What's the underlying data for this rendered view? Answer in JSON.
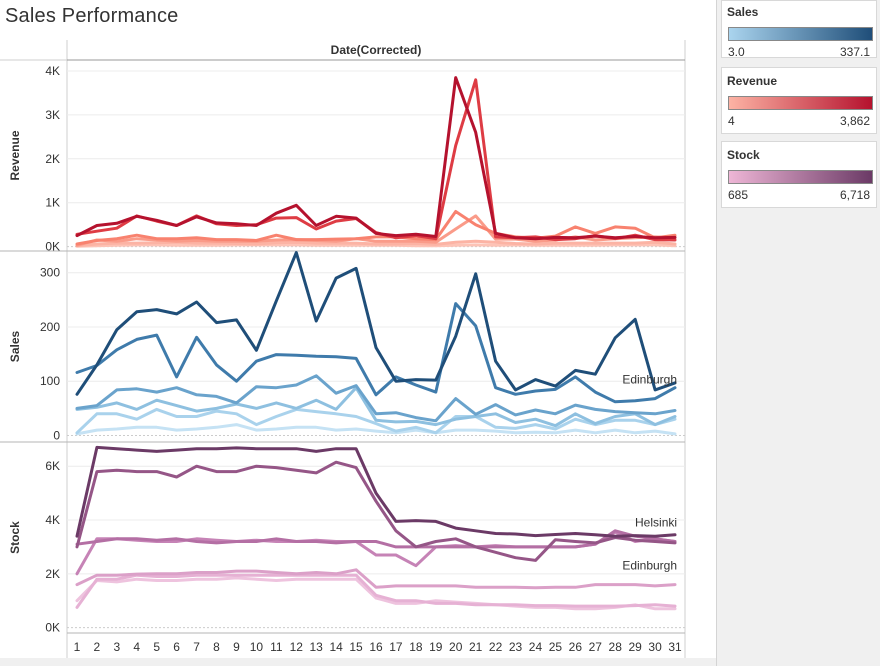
{
  "title": "Sales Performance",
  "legends": [
    {
      "key": "sales",
      "title": "Sales",
      "min": "3.0",
      "max": "337.1",
      "color_start": "#aad4ee",
      "color_end": "#1f4e79"
    },
    {
      "key": "revenue",
      "title": "Revenue",
      "min": "4",
      "max": "3,862",
      "color_start": "#fcb3a4",
      "color_end": "#b5122e"
    },
    {
      "key": "stock",
      "title": "Stock",
      "min": "685",
      "max": "6,718",
      "color_start": "#eeb6d6",
      "color_end": "#6b3a66"
    }
  ],
  "chart_data": {
    "type": "line",
    "column_header": "Date(Corrected)",
    "x": [
      1,
      2,
      3,
      4,
      5,
      6,
      7,
      8,
      9,
      10,
      11,
      12,
      13,
      14,
      15,
      16,
      17,
      18,
      19,
      20,
      21,
      22,
      23,
      24,
      25,
      26,
      27,
      28,
      29,
      30,
      31
    ],
    "panels": [
      {
        "measure": "Revenue",
        "ylabel": "Revenue",
        "ylim": [
          -100,
          4250
        ],
        "ticks": [
          {
            "v": 0,
            "label": "0K"
          },
          {
            "v": 1000,
            "label": "1K"
          },
          {
            "v": 2000,
            "label": "2K"
          },
          {
            "v": 3000,
            "label": "3K"
          },
          {
            "v": 4000,
            "label": "4K"
          }
        ],
        "series": [
          {
            "values": [
              250,
              480,
              530,
              690,
              600,
              480,
              680,
              540,
              520,
              480,
              760,
              940,
              480,
              690,
              650,
              300,
              250,
              280,
              230,
              3850,
              2600,
              300,
              200,
              180,
              210,
              200,
              240,
              200,
              230,
              200,
              210
            ],
            "color": "#b5122e"
          },
          {
            "values": [
              280,
              350,
              420,
              700,
              580,
              480,
              700,
              520,
              480,
              500,
              650,
              660,
              400,
              580,
              640,
              320,
              200,
              250,
              180,
              2300,
              3800,
              220,
              200,
              220,
              160,
              180,
              250,
              180,
              260,
              160,
              150
            ],
            "color": "#de3c44"
          },
          {
            "values": [
              60,
              140,
              180,
              260,
              180,
              180,
              200,
              160,
              160,
              140,
              260,
              160,
              160,
              170,
              180,
              220,
              220,
              180,
              160,
              800,
              500,
              300,
              220,
              190,
              240,
              450,
              300,
              450,
              420,
              200,
              260
            ],
            "color": "#f8826f"
          },
          {
            "values": [
              30,
              150,
              120,
              180,
              150,
              120,
              140,
              120,
              120,
              120,
              150,
              160,
              140,
              120,
              180,
              120,
              120,
              120,
              100,
              400,
              700,
              170,
              170,
              120,
              150,
              220,
              150,
              180,
              200,
              220,
              200
            ],
            "color": "#fa9b89"
          },
          {
            "values": [
              20,
              60,
              80,
              80,
              90,
              100,
              80,
              80,
              70,
              60,
              90,
              100,
              80,
              80,
              80,
              60,
              60,
              70,
              50,
              100,
              120,
              100,
              70,
              60,
              80,
              80,
              80,
              80,
              80,
              100,
              60
            ],
            "color": "#fcb3a4"
          },
          {
            "values": [
              10,
              20,
              30,
              40,
              40,
              30,
              30,
              30,
              40,
              40,
              40,
              40,
              30,
              30,
              30,
              30,
              30,
              20,
              20,
              30,
              40,
              30,
              40,
              30,
              30,
              30,
              30,
              40,
              40,
              40,
              20
            ],
            "color": "#fdc3b6"
          }
        ]
      },
      {
        "measure": "Sales",
        "ylabel": "Sales",
        "ylim": [
          -12,
          340
        ],
        "ticks": [
          {
            "v": 0,
            "label": "0"
          },
          {
            "v": 100,
            "label": "100"
          },
          {
            "v": 200,
            "label": "200"
          },
          {
            "v": 300,
            "label": "300"
          }
        ],
        "series": [
          {
            "values": [
              76,
              130,
              195,
              228,
              232,
              224,
              246,
              208,
              213,
              157,
              248,
              337,
              211,
              290,
              308,
              162,
              100,
              103,
              102,
              183,
              298,
              137,
              84,
              103,
              91,
              120,
              113,
              180,
              214,
              84,
              97
            ],
            "color": "#1f4e79"
          },
          {
            "values": [
              116,
              129,
              158,
              177,
              185,
              108,
              181,
              130,
              100,
              137,
              149,
              148,
              146,
              145,
              142,
              75,
              108,
              93,
              80,
              243,
              202,
              88,
              76,
              82,
              85,
              108,
              80,
              62,
              64,
              68,
              88
            ],
            "color": "#3f7bab"
          },
          {
            "values": [
              50,
              55,
              84,
              86,
              80,
              88,
              75,
              72,
              60,
              90,
              88,
              93,
              110,
              78,
              92,
              40,
              42,
              33,
              27,
              68,
              39,
              57,
              38,
              47,
              40,
              56,
              48,
              44,
              42,
              40,
              46
            ],
            "color": "#6aa3cc"
          },
          {
            "values": [
              48,
              52,
              60,
              48,
              65,
              55,
              45,
              50,
              58,
              50,
              60,
              50,
              65,
              48,
              88,
              28,
              25,
              26,
              20,
              30,
              35,
              40,
              24,
              30,
              18,
              40,
              22,
              35,
              40,
              20,
              35
            ],
            "color": "#8ec0e0"
          },
          {
            "values": [
              5,
              40,
              40,
              30,
              48,
              35,
              35,
              45,
              40,
              20,
              35,
              48,
              44,
              40,
              35,
              22,
              8,
              15,
              5,
              35,
              35,
              15,
              13,
              20,
              12,
              30,
              20,
              28,
              28,
              20,
              30
            ],
            "color": "#a9d2ec"
          },
          {
            "values": [
              3,
              10,
              12,
              15,
              15,
              10,
              12,
              15,
              20,
              10,
              12,
              15,
              15,
              10,
              12,
              8,
              5,
              10,
              5,
              10,
              10,
              8,
              5,
              6,
              5,
              10,
              5,
              10,
              5,
              8,
              3
            ],
            "color": "#c5e2f4"
          }
        ],
        "labels": [
          {
            "text": "Edinburgh",
            "x": 31,
            "y": 103
          }
        ]
      },
      {
        "measure": "Stock",
        "ylabel": "Stock",
        "ylim": [
          -200,
          6900
        ],
        "ticks": [
          {
            "v": 0,
            "label": "0K"
          },
          {
            "v": 2000,
            "label": "2K"
          },
          {
            "v": 4000,
            "label": "4K"
          },
          {
            "v": 6000,
            "label": "6K"
          }
        ],
        "series": [
          {
            "values": [
              3400,
              6700,
              6650,
              6600,
              6550,
              6600,
              6650,
              6650,
              6680,
              6650,
              6650,
              6650,
              6550,
              6650,
              6650,
              5000,
              3950,
              3980,
              3950,
              3700,
              3600,
              3500,
              3480,
              3420,
              3460,
              3500,
              3450,
              3400,
              3420,
              3400,
              3450
            ],
            "color": "#6b3a66"
          },
          {
            "values": [
              3000,
              5800,
              5850,
              5800,
              5800,
              5600,
              6000,
              5800,
              5800,
              6000,
              5950,
              5850,
              5750,
              6150,
              5950,
              4700,
              3600,
              3000,
              3200,
              3300,
              3000,
              2800,
              2600,
              2500,
              3270,
              3200,
              3150,
              3350,
              3250,
              3200,
              3150
            ],
            "color": "#955687"
          },
          {
            "values": [
              3100,
              3200,
              3300,
              3300,
              3250,
              3300,
              3200,
              3150,
              3200,
              3200,
              3300,
              3200,
              3200,
              3150,
              3200,
              3200,
              3000,
              3000,
              3000,
              3000,
              3000,
              3000,
              3000,
              3000,
              3000,
              3000,
              3100,
              3600,
              3400,
              3300,
              3200
            ],
            "color": "#b46fa4"
          },
          {
            "values": [
              2000,
              3300,
              3300,
              3250,
              3200,
              3200,
              3300,
              3250,
              3200,
              3250,
              3200,
              3200,
              3250,
              3200,
              3200,
              2700,
              2700,
              2300,
              3000,
              3050,
              3000,
              3050,
              3000,
              3000,
              3000,
              3000,
              3100,
              3550,
              3200,
              3300,
              3200
            ],
            "color": "#c683b6"
          },
          {
            "values": [
              1600,
              1950,
              1950,
              1990,
              2000,
              2000,
              2050,
              2050,
              2100,
              2100,
              2050,
              2000,
              2050,
              2000,
              2150,
              1500,
              1550,
              1550,
              1550,
              1550,
              1500,
              1500,
              1500,
              1480,
              1500,
              1500,
              1600,
              1600,
              1600,
              1550,
              1600
            ],
            "color": "#dba0c8"
          },
          {
            "values": [
              750,
              1800,
              1800,
              1950,
              1900,
              1900,
              1950,
              1950,
              1950,
              1950,
              1950,
              1950,
              1950,
              1950,
              1950,
              1200,
              1000,
              1000,
              900,
              900,
              850,
              850,
              850,
              820,
              820,
              800,
              800,
              800,
              820,
              850,
              800
            ],
            "color": "#e6b1d4"
          },
          {
            "values": [
              1000,
              1750,
              1700,
              1800,
              1750,
              1750,
              1800,
              1800,
              1850,
              1800,
              1750,
              1800,
              1800,
              1800,
              1800,
              1100,
              900,
              900,
              1000,
              950,
              900,
              850,
              800,
              750,
              750,
              700,
              700,
              750,
              850,
              700,
              700
            ],
            "color": "#eec3de"
          }
        ],
        "labels": [
          {
            "text": "Helsinki",
            "x": 31,
            "y": 3900
          },
          {
            "text": "Edinburgh",
            "x": 31,
            "y": 2300
          }
        ]
      }
    ]
  }
}
